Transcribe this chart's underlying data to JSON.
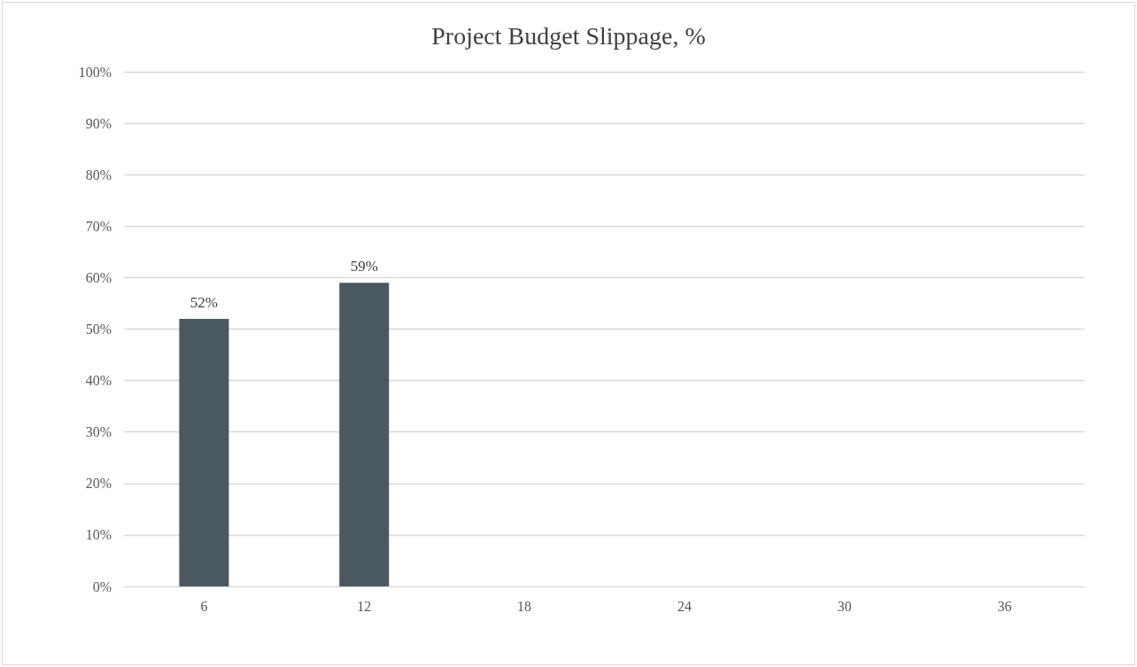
{
  "chart_data": {
    "type": "bar",
    "title": "Project Budget Slippage, %",
    "categories": [
      "6",
      "12",
      "18",
      "24",
      "30",
      "36"
    ],
    "series": [
      {
        "color": "#4a5961",
        "values": [
          52,
          59,
          null,
          null,
          null,
          null
        ],
        "value_labels": [
          "52%",
          "59%",
          null,
          null,
          null,
          null
        ]
      }
    ],
    "ylim": [
      0,
      100
    ],
    "yticks": [
      {
        "value": 0,
        "label": "0%"
      },
      {
        "value": 10,
        "label": "10%"
      },
      {
        "value": 20,
        "label": "20%"
      },
      {
        "value": 30,
        "label": "30%"
      },
      {
        "value": 40,
        "label": "40%"
      },
      {
        "value": 50,
        "label": "50%"
      },
      {
        "value": 60,
        "label": "60%"
      },
      {
        "value": 70,
        "label": "70%"
      },
      {
        "value": 80,
        "label": "80%"
      },
      {
        "value": 90,
        "label": "90%"
      },
      {
        "value": 100,
        "label": "100%"
      }
    ],
    "grid": "y"
  }
}
